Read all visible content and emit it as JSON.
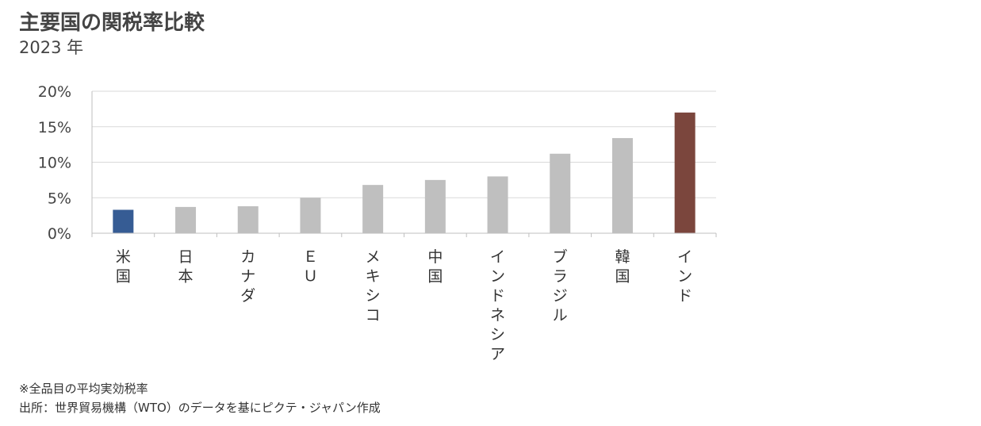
{
  "header": {
    "title": "主要国の関税率比較",
    "subtitle": "2023 年"
  },
  "footnotes": {
    "note": "※全品目の平均実効税率",
    "source": "出所：世界貿易機構（WTO）のデータを基にピクテ・ジャパン作成"
  },
  "colors": {
    "highlight_us": "#365C94",
    "highlight_india": "#7B463D",
    "default_bar": "#BFBFBF",
    "grid": "#D9D9D9",
    "axis": "#BFBFBF"
  },
  "chart_data": {
    "type": "bar",
    "title": "主要国の関税率比較",
    "subtitle": "2023 年",
    "xlabel": "",
    "ylabel": "",
    "ylim": [
      0,
      20
    ],
    "yticks": [
      "0%",
      "5%",
      "10%",
      "15%",
      "20%"
    ],
    "ytick_values": [
      0,
      5,
      10,
      15,
      20
    ],
    "grid": true,
    "legend": "none",
    "categories": [
      "米国",
      "日本",
      "カナダ",
      "ＥＵ",
      "メキシコ",
      "中国",
      "インドネシア",
      "ブラジル",
      "韓国",
      "インド"
    ],
    "values": [
      3.3,
      3.7,
      3.8,
      5.0,
      6.8,
      7.5,
      8.0,
      11.2,
      13.4,
      17.0
    ],
    "bar_colors": [
      "#365C94",
      "#BFBFBF",
      "#BFBFBF",
      "#BFBFBF",
      "#BFBFBF",
      "#BFBFBF",
      "#BFBFBF",
      "#BFBFBF",
      "#BFBFBF",
      "#7B463D"
    ]
  }
}
